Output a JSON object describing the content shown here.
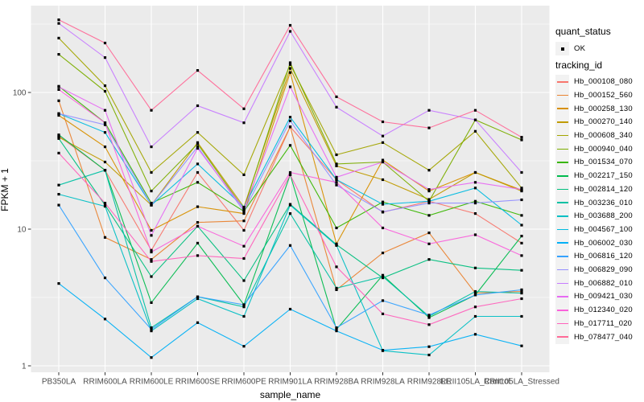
{
  "ui": {
    "quant_status_title": "quant_status",
    "quant_status_ok": "OK",
    "tracking_id_title": "tracking_id"
  },
  "chart_data": {
    "type": "line",
    "title": "",
    "xlabel": "sample_name",
    "ylabel": "FPKM + 1",
    "y_scale": "log10",
    "ylim": [
      0.9,
      430
    ],
    "y_ticks": [
      1,
      10,
      100
    ],
    "y_minor_ticks": [
      3.162,
      31.62,
      316.2
    ],
    "grid": "on",
    "legend_position": "right",
    "panel_background": "#EBEBEB",
    "gridline_color": "#FFFFFF",
    "point_color": "#000000",
    "axis_text_color": "#4D4D4D",
    "quant_status_value": "OK",
    "categories": [
      "PB350LA",
      "RRIM600LA",
      "RRIM600LE",
      "RRIM600SE",
      "RRIM600PE",
      "RRIM901LA",
      "RRIM928BA",
      "RRIM928LA",
      "RRIM928LE",
      "RRII105LA_Control",
      "RRII105LA_Stressed"
    ],
    "series": [
      {
        "name": "Hb_000108_080",
        "color": "#F8766D",
        "values": [
          48,
          27,
          7.0,
          26,
          9.8,
          56,
          23,
          13.3,
          16,
          13,
          7.9
        ]
      },
      {
        "name": "Hb_000152_560",
        "color": "#EA8331",
        "values": [
          87,
          8.7,
          6.0,
          11.2,
          11.5,
          56,
          3.6,
          6.7,
          9.4,
          3.4,
          3.5
        ]
      },
      {
        "name": "Hb_000258_130",
        "color": "#D89000",
        "values": [
          68,
          40,
          9.8,
          14.6,
          13,
          140,
          7.8,
          32,
          19,
          26,
          19.3
        ]
      },
      {
        "name": "Hb_000270_140",
        "color": "#C09B00",
        "values": [
          47,
          31,
          15,
          43,
          14.5,
          150,
          29,
          23,
          16.5,
          26,
          19
        ]
      },
      {
        "name": "Hb_000608_340",
        "color": "#A3A500",
        "values": [
          250,
          112,
          26,
          51,
          25,
          160,
          35,
          43,
          27,
          52,
          20
        ]
      },
      {
        "name": "Hb_000940_040",
        "color": "#7CAE00",
        "values": [
          190,
          102,
          19,
          42,
          14,
          165,
          30,
          31,
          16,
          63,
          45
        ]
      },
      {
        "name": "Hb_001534_070",
        "color": "#39B600",
        "values": [
          111,
          60,
          15.5,
          22,
          13.5,
          41,
          10.2,
          15.8,
          12.6,
          16,
          12.6
        ]
      },
      {
        "name": "Hb_002217_150",
        "color": "#00BB4E",
        "values": [
          49,
          27,
          2.9,
          7.9,
          2.8,
          25,
          1.85,
          4.6,
          2.25,
          3.3,
          8.9
        ]
      },
      {
        "name": "Hb_002814_120",
        "color": "#00BF7D",
        "values": [
          46,
          15,
          4.5,
          10.5,
          4.2,
          15.2,
          7.7,
          4.4,
          6.0,
          5.2,
          5.0
        ]
      },
      {
        "name": "Hb_003236_010",
        "color": "#00C1A3",
        "values": [
          21,
          27,
          1.9,
          3.2,
          2.7,
          13,
          3.7,
          4.5,
          2.3,
          3.5,
          3.4
        ]
      },
      {
        "name": "Hb_003688_200",
        "color": "#00BFC4",
        "values": [
          18,
          14.7,
          1.8,
          3.1,
          2.3,
          15,
          7.6,
          1.29,
          1.2,
          2.3,
          2.3
        ]
      },
      {
        "name": "Hb_004567_100",
        "color": "#00BAE0",
        "values": [
          70,
          51,
          15,
          30,
          14.5,
          66,
          23,
          15.2,
          16,
          20,
          10.7
        ]
      },
      {
        "name": "Hb_006002_030",
        "color": "#00B0F6",
        "values": [
          4.0,
          2.2,
          1.15,
          2.07,
          1.39,
          2.6,
          1.8,
          1.3,
          1.38,
          1.7,
          1.4
        ]
      },
      {
        "name": "Hb_006816_120",
        "color": "#35A2FF",
        "values": [
          15,
          4.4,
          1.85,
          3.2,
          2.8,
          7.6,
          1.9,
          3.0,
          2.35,
          3.3,
          3.6
        ]
      },
      {
        "name": "Hb_006829_090",
        "color": "#9590FF",
        "values": [
          70,
          58,
          15,
          40,
          13.5,
          62,
          21,
          13.4,
          15.5,
          15.5,
          16.4
        ]
      },
      {
        "name": "Hb_006882_010",
        "color": "#C77CFF",
        "values": [
          320,
          180,
          40,
          80,
          60,
          280,
          78,
          48,
          74,
          63,
          26
        ]
      },
      {
        "name": "Hb_009421_030",
        "color": "#E76BF3",
        "values": [
          110,
          74,
          9.0,
          39,
          14,
          110,
          24,
          31,
          19.5,
          22,
          19.5
        ]
      },
      {
        "name": "Hb_012340_020",
        "color": "#FA62DB",
        "values": [
          105,
          60,
          6.8,
          10.5,
          7.5,
          26,
          22,
          10.2,
          7.8,
          9.1,
          6.4
        ]
      },
      {
        "name": "Hb_017711_020",
        "color": "#FF62BC",
        "values": [
          36,
          15.5,
          5.8,
          6.4,
          6.1,
          25,
          5.3,
          2.4,
          2.0,
          2.7,
          3.1
        ]
      },
      {
        "name": "Hb_078477_040",
        "color": "#FF6A98",
        "values": [
          340,
          230,
          74,
          145,
          76,
          310,
          93,
          61,
          55,
          74,
          47
        ]
      }
    ]
  }
}
